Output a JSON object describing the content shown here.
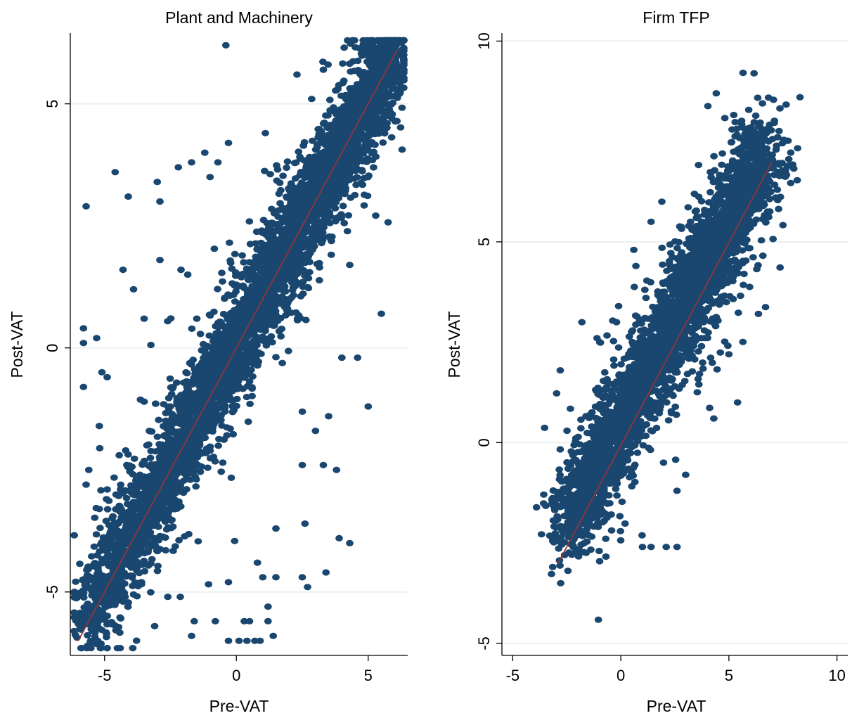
{
  "chart_data": [
    {
      "type": "scatter",
      "title": "Plant and Machinery",
      "xlabel": "Pre-VAT",
      "ylabel": "Post-VAT",
      "xlim": [
        -6.3,
        6.5
      ],
      "ylim": [
        -6.3,
        6.45
      ],
      "xticks": [
        {
          "value": -5,
          "label": "-5"
        },
        {
          "value": 0,
          "label": "0"
        },
        {
          "value": 5,
          "label": "5"
        }
      ],
      "yticks": [
        {
          "value": -5,
          "label": "-5"
        },
        {
          "value": 0,
          "label": "0"
        },
        {
          "value": 5,
          "label": "5"
        }
      ],
      "grid": "horizontal",
      "marker_color": "#1a476f",
      "line_color": "#90353b",
      "fit_line": {
        "x": [
          -6.0,
          6.1
        ],
        "y": [
          -6.0,
          6.1
        ]
      },
      "cloud": {
        "center_min": -5.8,
        "center_max": 6.1,
        "spread": 0.42
      },
      "outliers": [
        [
          -0.4,
          6.2
        ],
        [
          -5.7,
          2.9
        ],
        [
          -4.6,
          3.6
        ],
        [
          -4.1,
          3.1
        ],
        [
          -3.9,
          1.2
        ],
        [
          -4.3,
          1.6
        ],
        [
          -5.8,
          0.4
        ],
        [
          -5.8,
          0.1
        ],
        [
          -5.3,
          0.2
        ],
        [
          -5.1,
          -0.5
        ],
        [
          -4.9,
          -0.6
        ],
        [
          -5.8,
          -0.8
        ],
        [
          -5.2,
          -1.6
        ],
        [
          -5.6,
          -2.5
        ],
        [
          -5.7,
          -2.8
        ],
        [
          -4.9,
          -2.9
        ],
        [
          -5.2,
          -3.3
        ],
        [
          -4.2,
          -2.1
        ],
        [
          -3.0,
          3.4
        ],
        [
          -2.9,
          3.0
        ],
        [
          -2.2,
          3.7
        ],
        [
          -1.7,
          3.8
        ],
        [
          -1.2,
          4.0
        ],
        [
          -0.7,
          3.8
        ],
        [
          -0.3,
          4.2
        ],
        [
          -1.0,
          3.5
        ],
        [
          -2.1,
          1.6
        ],
        [
          -2.9,
          1.8
        ],
        [
          -3.5,
          0.6
        ],
        [
          -1.5,
          0.6
        ],
        [
          -1.3,
          -0.3
        ],
        [
          -2.4,
          -0.8
        ],
        [
          1.0,
          -4.7
        ],
        [
          1.2,
          -5.3
        ],
        [
          1.5,
          -4.7
        ],
        [
          1.2,
          -5.6
        ],
        [
          0.3,
          -5.6
        ],
        [
          0.5,
          -5.6
        ],
        [
          -0.8,
          -5.6
        ],
        [
          -1.6,
          -5.6
        ],
        [
          -0.3,
          -6.0
        ],
        [
          0.1,
          -6.0
        ],
        [
          0.4,
          -6.0
        ],
        [
          0.7,
          -6.0
        ],
        [
          0.9,
          -6.0
        ],
        [
          1.4,
          -5.9
        ],
        [
          -1.7,
          -5.9
        ],
        [
          -3.1,
          -5.7
        ],
        [
          -2.6,
          -5.1
        ],
        [
          -3.6,
          -4.8
        ],
        [
          -0.3,
          -4.8
        ],
        [
          0.8,
          -4.4
        ],
        [
          1.5,
          -3.7
        ],
        [
          2.6,
          -3.6
        ],
        [
          2.5,
          -4.7
        ],
        [
          3.4,
          -4.6
        ],
        [
          2.7,
          -4.9
        ],
        [
          3.3,
          -2.4
        ],
        [
          2.5,
          -2.4
        ],
        [
          3.8,
          -2.5
        ],
        [
          3.5,
          -1.4
        ],
        [
          3.0,
          -1.7
        ],
        [
          5.0,
          -1.2
        ],
        [
          4.6,
          -0.2
        ],
        [
          4.0,
          -0.2
        ],
        [
          5.5,
          0.7
        ],
        [
          4.3,
          -4.0
        ],
        [
          3.9,
          -3.9
        ],
        [
          2.8,
          2.1
        ],
        [
          3.2,
          3.2
        ],
        [
          4.3,
          1.7
        ],
        [
          3.3,
          5.7
        ],
        [
          2.3,
          5.6
        ],
        [
          1.1,
          4.4
        ],
        [
          -3.5,
          -1.1
        ],
        [
          -2.5,
          -1.2
        ],
        [
          -3.3,
          -1.7
        ],
        [
          -2.0,
          -2.0
        ]
      ]
    },
    {
      "type": "scatter",
      "title": "Firm TFP",
      "xlabel": "Pre-VAT",
      "ylabel": "Post-VAT",
      "xlim": [
        -5.5,
        10.5
      ],
      "ylim": [
        -5.3,
        10.2
      ],
      "xticks": [
        {
          "value": -5,
          "label": "-5"
        },
        {
          "value": 0,
          "label": "0"
        },
        {
          "value": 5,
          "label": "5"
        },
        {
          "value": 10,
          "label": "10"
        }
      ],
      "yticks": [
        {
          "value": -5,
          "label": "-5"
        },
        {
          "value": 0,
          "label": "0"
        },
        {
          "value": 5,
          "label": "5"
        },
        {
          "value": 10,
          "label": "10"
        }
      ],
      "grid": "horizontal",
      "marker_color": "#1a476f",
      "line_color": "#90353b",
      "fit_line": {
        "x": [
          -2.9,
          7.0
        ],
        "y": [
          -3.0,
          7.0
        ]
      },
      "cloud": {
        "center_min": -2.7,
        "center_max": 6.7,
        "spread": 0.55
      },
      "outliers": [
        [
          5.4,
          1.0
        ],
        [
          5.0,
          2.2
        ],
        [
          4.3,
          0.6
        ],
        [
          3.5,
          2.6
        ],
        [
          0.6,
          4.8
        ],
        [
          1.4,
          5.5
        ],
        [
          1.9,
          6.0
        ],
        [
          -1.8,
          3.0
        ],
        [
          -2.8,
          1.8
        ],
        [
          -1.1,
          2.6
        ],
        [
          -0.1,
          3.4
        ],
        [
          2.6,
          -2.6
        ],
        [
          2.1,
          -2.6
        ],
        [
          1.0,
          -2.6
        ],
        [
          1.4,
          -2.6
        ],
        [
          -1.0,
          -2.7
        ],
        [
          -1.5,
          -2.3
        ],
        [
          -2.2,
          -2.6
        ],
        [
          -2.6,
          -2.8
        ],
        [
          3.0,
          -0.8
        ],
        [
          2.6,
          -1.2
        ],
        [
          -0.5,
          -0.3
        ],
        [
          0.7,
          4.4
        ],
        [
          -0.2,
          3.0
        ]
      ]
    }
  ]
}
